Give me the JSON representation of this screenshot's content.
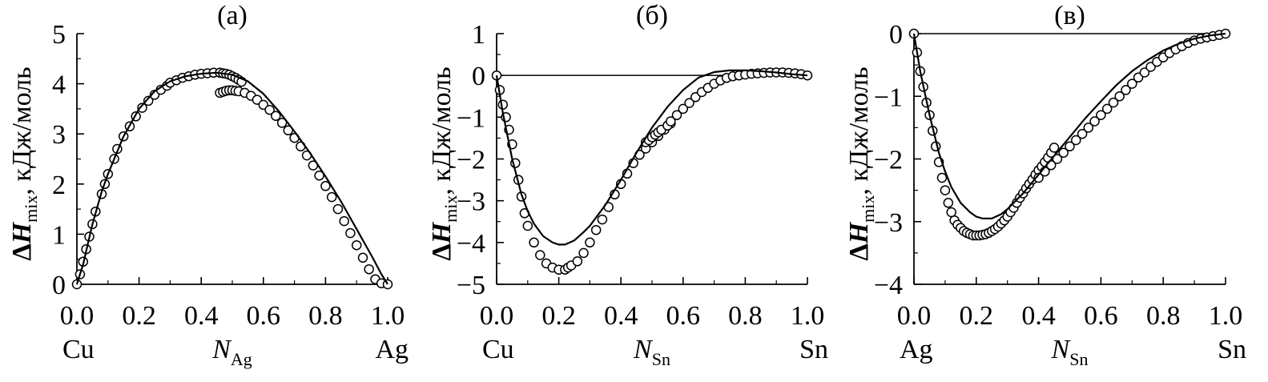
{
  "chart_data": [
    {
      "type": "scatter",
      "panel_label": "(а)",
      "ylabel": {
        "prefix": "Δ",
        "var": "H",
        "sub": "mix",
        "unit": ", кДж/моль"
      },
      "xlabel": {
        "var": "N",
        "sub": "Ag"
      },
      "x_left_name": "Cu",
      "x_right_name": "Ag",
      "xlim": [
        0,
        1
      ],
      "ylim": [
        0,
        5
      ],
      "xticks": [
        "0.0",
        "0.2",
        "0.4",
        "0.6",
        "0.8",
        "1.0"
      ],
      "yticks": [
        "0",
        "1",
        "2",
        "3",
        "4",
        "5"
      ],
      "zero_line": false,
      "series": [
        {
          "kind": "points",
          "x": [
            0.0,
            0.01,
            0.02,
            0.03,
            0.04,
            0.05,
            0.06,
            0.08,
            0.09,
            0.1,
            0.12,
            0.13,
            0.15,
            0.17,
            0.19,
            0.21,
            0.23,
            0.25,
            0.27,
            0.29,
            0.3,
            0.32,
            0.34,
            0.36,
            0.38,
            0.4,
            0.42,
            0.44,
            0.46,
            0.47,
            0.48,
            0.49,
            0.5,
            0.51,
            0.52,
            0.53,
            0.46,
            0.47,
            0.48,
            0.49,
            0.5,
            0.51,
            0.52,
            0.54,
            0.56,
            0.58,
            0.6,
            0.62,
            0.64,
            0.66,
            0.68,
            0.7,
            0.72,
            0.74,
            0.76,
            0.78,
            0.8,
            0.82,
            0.84,
            0.86,
            0.88,
            0.9,
            0.92,
            0.94,
            0.96,
            0.98,
            1.0
          ],
          "y": [
            0.0,
            0.2,
            0.45,
            0.7,
            0.95,
            1.2,
            1.45,
            1.8,
            2.0,
            2.2,
            2.5,
            2.7,
            2.95,
            3.15,
            3.35,
            3.52,
            3.66,
            3.78,
            3.88,
            3.96,
            4.02,
            4.07,
            4.12,
            4.15,
            4.18,
            4.2,
            4.21,
            4.22,
            4.22,
            4.21,
            4.2,
            4.18,
            4.15,
            4.12,
            4.08,
            4.04,
            3.82,
            3.84,
            3.86,
            3.87,
            3.87,
            3.86,
            3.85,
            3.82,
            3.76,
            3.68,
            3.58,
            3.48,
            3.36,
            3.22,
            3.07,
            2.92,
            2.75,
            2.57,
            2.37,
            2.17,
            1.96,
            1.74,
            1.5,
            1.26,
            1.02,
            0.78,
            0.53,
            0.3,
            0.1,
            0.02,
            0.0
          ]
        },
        {
          "kind": "line",
          "x": [
            0.0,
            0.02,
            0.05,
            0.08,
            0.1,
            0.15,
            0.2,
            0.25,
            0.3,
            0.35,
            0.4,
            0.45,
            0.5,
            0.55,
            0.6,
            0.65,
            0.7,
            0.75,
            0.8,
            0.85,
            0.9,
            0.95,
            0.98,
            1.0
          ],
          "y": [
            0.0,
            0.4,
            1.2,
            1.85,
            2.2,
            2.95,
            3.5,
            3.85,
            4.05,
            4.15,
            4.2,
            4.22,
            4.18,
            4.05,
            3.8,
            3.45,
            3.05,
            2.62,
            2.15,
            1.65,
            1.1,
            0.55,
            0.2,
            0.0
          ]
        }
      ]
    },
    {
      "type": "scatter",
      "panel_label": "(б)",
      "ylabel": {
        "prefix": "Δ",
        "var": "H",
        "sub": "mix",
        "unit": ", кДж/моль"
      },
      "xlabel": {
        "var": "N",
        "sub": "Sn"
      },
      "x_left_name": "Cu",
      "x_right_name": "Sn",
      "xlim": [
        0,
        1
      ],
      "ylim": [
        -5,
        1
      ],
      "xticks": [
        "0.0",
        "0.2",
        "0.4",
        "0.6",
        "0.8",
        "1.0"
      ],
      "yticks": [
        "−5",
        "−4",
        "−3",
        "−2",
        "−1",
        "0",
        "1"
      ],
      "zero_line": true,
      "series": [
        {
          "kind": "points",
          "x": [
            0.0,
            0.01,
            0.02,
            0.03,
            0.04,
            0.05,
            0.06,
            0.07,
            0.08,
            0.09,
            0.1,
            0.12,
            0.14,
            0.16,
            0.18,
            0.2,
            0.22,
            0.23,
            0.24,
            0.26,
            0.28,
            0.3,
            0.32,
            0.34,
            0.36,
            0.38,
            0.4,
            0.42,
            0.44,
            0.46,
            0.48,
            0.5,
            0.52,
            0.54,
            0.56,
            0.48,
            0.49,
            0.5,
            0.51,
            0.52,
            0.53,
            0.55,
            0.56,
            0.58,
            0.6,
            0.62,
            0.64,
            0.66,
            0.68,
            0.7,
            0.72,
            0.74,
            0.76,
            0.78,
            0.8,
            0.82,
            0.84,
            0.86,
            0.88,
            0.9,
            0.92,
            0.94,
            0.96,
            0.98,
            1.0
          ],
          "y": [
            0.0,
            -0.35,
            -0.7,
            -1.0,
            -1.3,
            -1.65,
            -2.1,
            -2.5,
            -2.9,
            -3.3,
            -3.6,
            -4.0,
            -4.3,
            -4.5,
            -4.6,
            -4.65,
            -4.65,
            -4.6,
            -4.55,
            -4.45,
            -4.25,
            -4.0,
            -3.7,
            -3.45,
            -3.15,
            -2.85,
            -2.6,
            -2.35,
            -2.1,
            -1.9,
            -1.75,
            -1.6,
            -1.45,
            -1.3,
            -1.15,
            -1.6,
            -1.55,
            -1.48,
            -1.42,
            -1.36,
            -1.3,
            -1.2,
            -1.1,
            -0.95,
            -0.8,
            -0.66,
            -0.52,
            -0.4,
            -0.3,
            -0.2,
            -0.12,
            -0.06,
            -0.02,
            0.0,
            0.02,
            0.04,
            0.05,
            0.06,
            0.07,
            0.07,
            0.07,
            0.06,
            0.05,
            0.03,
            0.0
          ]
        },
        {
          "kind": "line",
          "x": [
            0.0,
            0.02,
            0.05,
            0.08,
            0.1,
            0.12,
            0.15,
            0.18,
            0.2,
            0.22,
            0.25,
            0.28,
            0.3,
            0.35,
            0.4,
            0.45,
            0.5,
            0.55,
            0.6,
            0.65,
            0.7,
            0.75,
            0.8,
            0.85,
            0.9,
            0.95,
            1.0
          ],
          "y": [
            0.0,
            -0.9,
            -2.0,
            -2.85,
            -3.25,
            -3.55,
            -3.85,
            -4.0,
            -4.05,
            -4.05,
            -3.95,
            -3.75,
            -3.6,
            -3.1,
            -2.5,
            -1.85,
            -1.25,
            -0.75,
            -0.35,
            -0.05,
            0.08,
            0.12,
            0.12,
            0.1,
            0.07,
            0.03,
            0.0
          ]
        }
      ]
    },
    {
      "type": "scatter",
      "panel_label": "(в)",
      "ylabel": {
        "prefix": "Δ",
        "var": "H",
        "sub": "mix",
        "unit": ", кДж/моль"
      },
      "xlabel": {
        "var": "N",
        "sub": "Sn"
      },
      "x_left_name": "Ag",
      "x_right_name": "Sn",
      "xlim": [
        0,
        1
      ],
      "ylim": [
        -4,
        0
      ],
      "xticks": [
        "0.0",
        "0.2",
        "0.4",
        "0.6",
        "0.8",
        "1.0"
      ],
      "yticks": [
        "−4",
        "−3",
        "−2",
        "−1",
        "0"
      ],
      "zero_line": true,
      "series": [
        {
          "kind": "points",
          "x": [
            0.0,
            0.01,
            0.02,
            0.03,
            0.04,
            0.05,
            0.06,
            0.07,
            0.08,
            0.09,
            0.1,
            0.11,
            0.12,
            0.13,
            0.14,
            0.15,
            0.16,
            0.17,
            0.18,
            0.19,
            0.2,
            0.21,
            0.22,
            0.23,
            0.24,
            0.25,
            0.26,
            0.27,
            0.28,
            0.29,
            0.3,
            0.31,
            0.32,
            0.33,
            0.34,
            0.35,
            0.36,
            0.37,
            0.38,
            0.39,
            0.4,
            0.41,
            0.42,
            0.43,
            0.44,
            0.45,
            0.4,
            0.42,
            0.44,
            0.46,
            0.48,
            0.5,
            0.52,
            0.54,
            0.56,
            0.58,
            0.6,
            0.62,
            0.64,
            0.66,
            0.68,
            0.7,
            0.72,
            0.74,
            0.76,
            0.78,
            0.8,
            0.82,
            0.84,
            0.86,
            0.88,
            0.9,
            0.92,
            0.94,
            0.96,
            0.98,
            1.0
          ],
          "y": [
            0.0,
            -0.3,
            -0.6,
            -0.85,
            -1.1,
            -1.3,
            -1.55,
            -1.8,
            -2.05,
            -2.3,
            -2.5,
            -2.7,
            -2.85,
            -2.98,
            -3.05,
            -3.1,
            -3.15,
            -3.18,
            -3.2,
            -3.22,
            -3.22,
            -3.22,
            -3.21,
            -3.2,
            -3.18,
            -3.15,
            -3.12,
            -3.08,
            -3.03,
            -2.98,
            -2.92,
            -2.85,
            -2.78,
            -2.7,
            -2.62,
            -2.55,
            -2.47,
            -2.4,
            -2.33,
            -2.25,
            -2.18,
            -2.12,
            -2.05,
            -1.98,
            -1.9,
            -1.82,
            -2.3,
            -2.2,
            -2.1,
            -2.0,
            -1.9,
            -1.8,
            -1.7,
            -1.6,
            -1.5,
            -1.4,
            -1.3,
            -1.2,
            -1.1,
            -1.0,
            -0.9,
            -0.8,
            -0.7,
            -0.62,
            -0.53,
            -0.45,
            -0.38,
            -0.31,
            -0.25,
            -0.2,
            -0.15,
            -0.11,
            -0.08,
            -0.06,
            -0.04,
            -0.02,
            0.0
          ]
        },
        {
          "kind": "line",
          "x": [
            0.0,
            0.02,
            0.05,
            0.08,
            0.1,
            0.12,
            0.15,
            0.18,
            0.2,
            0.22,
            0.25,
            0.28,
            0.3,
            0.35,
            0.4,
            0.45,
            0.5,
            0.55,
            0.6,
            0.65,
            0.7,
            0.75,
            0.8,
            0.85,
            0.9,
            0.95,
            1.0
          ],
          "y": [
            0.0,
            -0.6,
            -1.3,
            -1.9,
            -2.2,
            -2.45,
            -2.7,
            -2.85,
            -2.92,
            -2.95,
            -2.95,
            -2.88,
            -2.8,
            -2.55,
            -2.25,
            -1.95,
            -1.65,
            -1.35,
            -1.08,
            -0.82,
            -0.6,
            -0.42,
            -0.27,
            -0.16,
            -0.08,
            -0.03,
            0.0
          ]
        }
      ]
    }
  ]
}
